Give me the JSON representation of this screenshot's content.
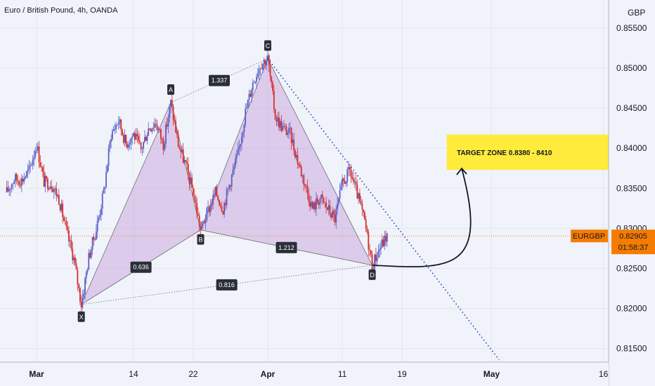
{
  "header": {
    "symbol_title": "Euro / British Pound, 4h, OANDA"
  },
  "colors": {
    "up": "#5b5fc7",
    "down": "#d32f2f",
    "pattern_fill": "#c49bd6",
    "price_line": "#f57c00",
    "target_zone": "#ffeb3b",
    "trend_dots": "#2a3bb5"
  },
  "chart_data": {
    "type": "candlestick",
    "instrument": "EURGBP",
    "currency": "GBP",
    "timeframe": "4h",
    "ylim": [
      0.8133,
      0.8585
    ],
    "y_ticks": [
      "0.85500",
      "0.85000",
      "0.84500",
      "0.84000",
      "0.83500",
      "0.83000",
      "0.82500",
      "0.82000",
      "0.81500"
    ],
    "x_ticks": [
      "Mar",
      "14",
      "22",
      "Apr",
      "11",
      "19",
      "May",
      "16"
    ],
    "last_price": {
      "label": "EURGBP",
      "value": "0.82905",
      "countdown": "01:58:37"
    },
    "pattern": {
      "points": [
        {
          "label": "X",
          "date": "Mar 7",
          "price": 0.8205
        },
        {
          "label": "A",
          "date": "Mar 19",
          "price": 0.8457
        },
        {
          "label": "B",
          "date": "Mar 23",
          "price": 0.8298
        },
        {
          "label": "C",
          "date": "Apr 1",
          "price": 0.8512
        },
        {
          "label": "D",
          "date": "Apr 15",
          "price": 0.8254
        }
      ],
      "ratios": [
        {
          "label": "1.337",
          "from": "A",
          "to": "C"
        },
        {
          "label": "0.636",
          "from": "X",
          "to": "B"
        },
        {
          "label": "1.212",
          "from": "B",
          "to": "D"
        },
        {
          "label": "0.816",
          "from": "X",
          "to": "D"
        }
      ]
    },
    "trendline": {
      "from": {
        "date": "Apr 1",
        "price": 0.8512
      },
      "to": {
        "date": "May 2",
        "price": 0.8136
      }
    },
    "target_zone": {
      "label": "TARGET ZONE  0.8380 - 8410",
      "low": 0.838,
      "high": 0.841,
      "from": "Apr 25",
      "to": "May 18"
    },
    "projection": {
      "from": {
        "date": "Apr 15",
        "price": 0.8254
      },
      "to": {
        "date": "Apr 27",
        "price": 0.838
      }
    },
    "candles_close_path": [
      [
        "Feb 25",
        0.8345
      ],
      [
        "Feb 26",
        0.8362
      ],
      [
        "Feb 27",
        0.836
      ],
      [
        "Feb 28",
        0.8372
      ],
      [
        "Mar 1",
        0.8405
      ],
      [
        "Mar 2",
        0.8358
      ],
      [
        "Mar 3",
        0.8356
      ],
      [
        "Mar 4",
        0.8337
      ],
      [
        "Mar 5",
        0.8296
      ],
      [
        "Mar 6",
        0.8262
      ],
      [
        "Mar 7",
        0.8205
      ],
      [
        "Mar 8",
        0.8264
      ],
      [
        "Mar 9",
        0.8299
      ],
      [
        "Mar 10",
        0.8345
      ],
      [
        "Mar 11",
        0.8418
      ],
      [
        "Mar 12",
        0.8435
      ],
      [
        "Mar 13",
        0.8405
      ],
      [
        "Mar 14",
        0.8418
      ],
      [
        "Mar 15",
        0.8398
      ],
      [
        "Mar 16",
        0.8425
      ],
      [
        "Mar 17",
        0.8432
      ],
      [
        "Mar 18",
        0.8405
      ],
      [
        "Mar 19",
        0.8457
      ],
      [
        "Mar 20",
        0.8405
      ],
      [
        "Mar 21",
        0.8378
      ],
      [
        "Mar 22",
        0.8345
      ],
      [
        "Mar 23",
        0.8298
      ],
      [
        "Mar 24",
        0.8322
      ],
      [
        "Mar 25",
        0.8345
      ],
      [
        "Mar 26",
        0.8325
      ],
      [
        "Mar 27",
        0.836
      ],
      [
        "Mar 28",
        0.8392
      ],
      [
        "Mar 29",
        0.8445
      ],
      [
        "Mar 30",
        0.8482
      ],
      [
        "Mar 31",
        0.8505
      ],
      [
        "Apr 1",
        0.8512
      ],
      [
        "Apr 2",
        0.844
      ],
      [
        "Apr 3",
        0.8425
      ],
      [
        "Apr 4",
        0.8418
      ],
      [
        "Apr 5",
        0.8385
      ],
      [
        "Apr 6",
        0.8355
      ],
      [
        "Apr 7",
        0.8325
      ],
      [
        "Apr 8",
        0.8338
      ],
      [
        "Apr 9",
        0.8325
      ],
      [
        "Apr 10",
        0.8312
      ],
      [
        "Apr 11",
        0.8355
      ],
      [
        "Apr 12",
        0.8372
      ],
      [
        "Apr 13",
        0.8342
      ],
      [
        "Apr 14",
        0.8308
      ],
      [
        "Apr 15",
        0.8254
      ],
      [
        "Apr 16",
        0.8275
      ],
      [
        "Apr 17",
        0.8291
      ]
    ]
  }
}
